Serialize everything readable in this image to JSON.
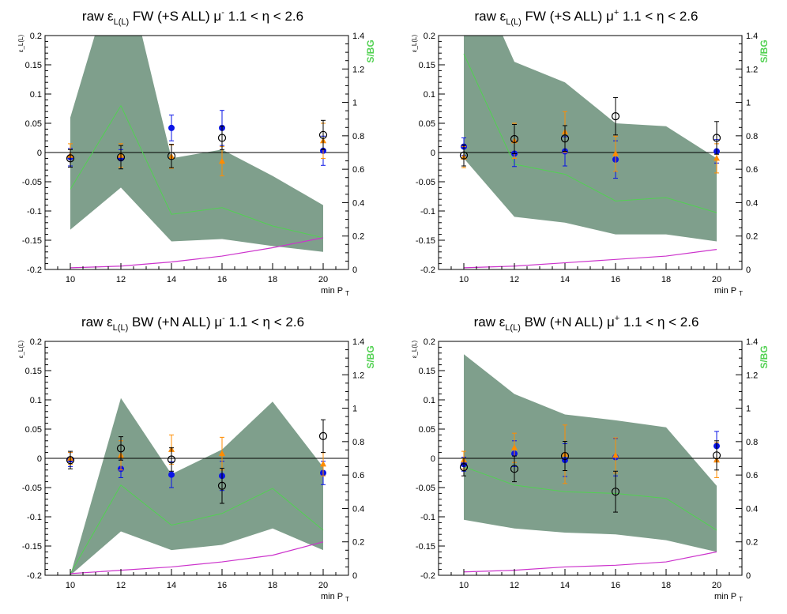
{
  "chart_data": [
    {
      "type": "scatter",
      "title": {
        "pre": "raw ",
        "eps": "ε",
        "sub": "L(L)",
        "mid": " FW (+S ALL) ",
        "mu": "μ",
        "sup": "-",
        "post": "  1.1 < η < 2.6"
      },
      "ylabel": "ε_L(L)",
      "y2label": "S/BG",
      "xlabel": {
        "main": "min P",
        "sub": "T"
      },
      "x_ticks": [
        "10",
        "12",
        "14",
        "16",
        "18",
        "20"
      ],
      "y_ticks": [
        "-0.2",
        "-0.15",
        "-0.1",
        "-0.05",
        "0",
        "0.05",
        "0.1",
        "0.15",
        "0.2"
      ],
      "y2_ticks": [
        "0",
        "0.2",
        "0.4",
        "0.6",
        "0.8",
        "1",
        "1.2",
        "1.4"
      ],
      "xlim": [
        9,
        21
      ],
      "ylim": [
        -0.2,
        0.2
      ],
      "y2lim": [
        0,
        1.4
      ],
      "band": {
        "x": [
          10,
          12,
          14,
          16,
          18,
          20
        ],
        "upper": [
          0.06,
          0.35,
          -0.01,
          0.005,
          -0.04,
          -0.09
        ],
        "lower": [
          -0.132,
          -0.06,
          -0.152,
          -0.148,
          -0.16,
          -0.17
        ]
      },
      "sbg_line": {
        "x": [
          10,
          12,
          14,
          16,
          18,
          20
        ],
        "y": [
          0.48,
          0.98,
          0.33,
          0.37,
          0.26,
          0.19
        ]
      },
      "magenta_line": {
        "x": [
          10,
          12,
          14,
          16,
          18,
          20
        ],
        "y": [
          0.01,
          0.02,
          0.045,
          0.08,
          0.13,
          0.19
        ]
      },
      "series": [
        {
          "marker": "blue-dot",
          "points": [
            {
              "x": 10,
              "y": -0.008,
              "err": 0.015
            },
            {
              "x": 12,
              "y": -0.01,
              "err": 0.015
            },
            {
              "x": 14,
              "y": 0.042,
              "err": 0.022
            },
            {
              "x": 16,
              "y": 0.042,
              "err": 0.03
            },
            {
              "x": 20,
              "y": 0.003,
              "err": 0.025
            }
          ]
        },
        {
          "marker": "orange-triangle",
          "points": [
            {
              "x": 10,
              "y": -0.005,
              "err": 0.02
            },
            {
              "x": 12,
              "y": -0.005,
              "err": 0.02
            },
            {
              "x": 14,
              "y": -0.007,
              "err": 0.02
            },
            {
              "x": 16,
              "y": -0.015,
              "err": 0.025
            },
            {
              "x": 20,
              "y": 0.02,
              "err": 0.03
            }
          ]
        },
        {
          "marker": "black-circle",
          "points": [
            {
              "x": 10,
              "y": -0.01,
              "err": 0.015
            },
            {
              "x": 12,
              "y": -0.008,
              "err": 0.02
            },
            {
              "x": 14,
              "y": -0.006,
              "err": 0.02
            },
            {
              "x": 16,
              "y": 0.025,
              "err": 0.02
            },
            {
              "x": 20,
              "y": 0.03,
              "err": 0.025
            }
          ]
        }
      ]
    },
    {
      "type": "scatter",
      "title": {
        "pre": "raw ",
        "eps": "ε",
        "sub": "L(L)",
        "mid": " FW (+S ALL) ",
        "mu": "μ",
        "sup": "+",
        "post": "  1.1 < η < 2.6"
      },
      "ylabel": "ε_L(L)",
      "y2label": "S/BG",
      "xlabel": {
        "main": "min P",
        "sub": "T"
      },
      "x_ticks": [
        "10",
        "12",
        "14",
        "16",
        "18",
        "20"
      ],
      "y_ticks": [
        "-0.2",
        "-0.15",
        "-0.1",
        "-0.05",
        "0",
        "0.05",
        "0.1",
        "0.15",
        "0.2"
      ],
      "y2_ticks": [
        "0",
        "0.2",
        "0.4",
        "0.6",
        "0.8",
        "1",
        "1.2",
        "1.4"
      ],
      "xlim": [
        9,
        21
      ],
      "ylim": [
        -0.2,
        0.2
      ],
      "y2lim": [
        0,
        1.4
      ],
      "band": {
        "x": [
          10,
          12,
          14,
          16,
          18,
          20
        ],
        "upper": [
          0.35,
          0.155,
          0.12,
          0.05,
          0.045,
          -0.01
        ],
        "lower": [
          -0.01,
          -0.11,
          -0.12,
          -0.14,
          -0.14,
          -0.152
        ]
      },
      "sbg_line": {
        "x": [
          10,
          12,
          14,
          16,
          18,
          20
        ],
        "y": [
          1.29,
          0.63,
          0.57,
          0.41,
          0.43,
          0.34
        ]
      },
      "magenta_line": {
        "x": [
          10,
          12,
          14,
          16,
          18,
          20
        ],
        "y": [
          0.01,
          0.02,
          0.04,
          0.06,
          0.08,
          0.12
        ]
      },
      "series": [
        {
          "marker": "blue-dot",
          "points": [
            {
              "x": 10,
              "y": 0.01,
              "err": 0.015
            },
            {
              "x": 12,
              "y": -0.002,
              "err": 0.022
            },
            {
              "x": 14,
              "y": 0.002,
              "err": 0.025
            },
            {
              "x": 16,
              "y": -0.012,
              "err": 0.032
            },
            {
              "x": 20,
              "y": 0.002,
              "err": 0.02
            }
          ]
        },
        {
          "marker": "orange-triangle",
          "points": [
            {
              "x": 10,
              "y": -0.008,
              "err": 0.018
            },
            {
              "x": 12,
              "y": 0.02,
              "err": 0.03
            },
            {
              "x": 14,
              "y": 0.035,
              "err": 0.035
            },
            {
              "x": 16,
              "y": -0.002,
              "err": 0.03
            },
            {
              "x": 20,
              "y": -0.01,
              "err": 0.025
            }
          ]
        },
        {
          "marker": "black-circle",
          "points": [
            {
              "x": 10,
              "y": -0.005,
              "err": 0.018
            },
            {
              "x": 12,
              "y": 0.023,
              "err": 0.025
            },
            {
              "x": 14,
              "y": 0.024,
              "err": 0.022
            },
            {
              "x": 16,
              "y": 0.062,
              "err": 0.032
            },
            {
              "x": 20,
              "y": 0.025,
              "err": 0.028
            }
          ]
        }
      ]
    },
    {
      "type": "scatter",
      "title": {
        "pre": "raw ",
        "eps": "ε",
        "sub": "L(L)",
        "mid": " BW (+N ALL) ",
        "mu": "μ",
        "sup": "-",
        "post": "  1.1 < η < 2.6"
      },
      "ylabel": "ε_L(L)",
      "y2label": "S/BG",
      "xlabel": {
        "main": "min P",
        "sub": "T"
      },
      "x_ticks": [
        "10",
        "12",
        "14",
        "16",
        "18",
        "20"
      ],
      "y_ticks": [
        "-0.2",
        "-0.15",
        "-0.1",
        "-0.05",
        "0",
        "0.05",
        "0.1",
        "0.15",
        "0.2"
      ],
      "y2_ticks": [
        "0",
        "0.2",
        "0.4",
        "0.6",
        "0.8",
        "1",
        "1.2",
        "1.4"
      ],
      "xlim": [
        9,
        21
      ],
      "ylim": [
        -0.2,
        0.2
      ],
      "y2lim": [
        0,
        1.4
      ],
      "band": {
        "x": [
          10,
          12,
          14,
          16,
          18,
          20
        ],
        "upper": [
          -0.2,
          0.103,
          -0.027,
          0.015,
          0.097,
          -0.015
        ],
        "lower": [
          -0.2,
          -0.125,
          -0.157,
          -0.148,
          -0.12,
          -0.157
        ]
      },
      "sbg_line": {
        "x": [
          10,
          12,
          14,
          16,
          18,
          20
        ],
        "y": [
          0.01,
          0.54,
          0.3,
          0.37,
          0.52,
          0.27
        ]
      },
      "magenta_line": {
        "x": [
          10,
          12,
          14,
          16,
          18,
          20
        ],
        "y": [
          0.01,
          0.03,
          0.05,
          0.08,
          0.12,
          0.2
        ]
      },
      "series": [
        {
          "marker": "blue-dot",
          "points": [
            {
              "x": 10,
              "y": -0.002,
              "err": 0.012
            },
            {
              "x": 12,
              "y": -0.018,
              "err": 0.015
            },
            {
              "x": 14,
              "y": -0.028,
              "err": 0.022
            },
            {
              "x": 16,
              "y": -0.03,
              "err": 0.025
            },
            {
              "x": 20,
              "y": -0.025,
              "err": 0.02
            }
          ]
        },
        {
          "marker": "orange-triangle",
          "points": [
            {
              "x": 10,
              "y": 0.0,
              "err": 0.01
            },
            {
              "x": 12,
              "y": 0.005,
              "err": 0.025
            },
            {
              "x": 14,
              "y": 0.015,
              "err": 0.025
            },
            {
              "x": 16,
              "y": 0.008,
              "err": 0.028
            },
            {
              "x": 20,
              "y": -0.01,
              "err": 0.02
            }
          ]
        },
        {
          "marker": "black-circle",
          "points": [
            {
              "x": 10,
              "y": -0.003,
              "err": 0.015
            },
            {
              "x": 12,
              "y": 0.017,
              "err": 0.02
            },
            {
              "x": 14,
              "y": -0.002,
              "err": 0.02
            },
            {
              "x": 16,
              "y": -0.047,
              "err": 0.03
            },
            {
              "x": 20,
              "y": 0.038,
              "err": 0.028
            }
          ]
        }
      ]
    },
    {
      "type": "scatter",
      "title": {
        "pre": "raw ",
        "eps": "ε",
        "sub": "L(L)",
        "mid": " BW (+N ALL) ",
        "mu": "μ",
        "sup": "+",
        "post": "  1.1 < η < 2.6"
      },
      "ylabel": "ε_L(L)",
      "y2label": "S/BG",
      "xlabel": {
        "main": "min P",
        "sub": "T"
      },
      "x_ticks": [
        "10",
        "12",
        "14",
        "16",
        "18",
        "20"
      ],
      "y_ticks": [
        "-0.2",
        "-0.15",
        "-0.1",
        "-0.05",
        "0",
        "0.05",
        "0.1",
        "0.15",
        "0.2"
      ],
      "y2_ticks": [
        "0",
        "0.2",
        "0.4",
        "0.6",
        "0.8",
        "1",
        "1.2",
        "1.4"
      ],
      "xlim": [
        9,
        21
      ],
      "ylim": [
        -0.2,
        0.2
      ],
      "y2lim": [
        0,
        1.4
      ],
      "band": {
        "x": [
          10,
          12,
          14,
          16,
          18,
          20
        ],
        "upper": [
          0.178,
          0.11,
          0.075,
          0.065,
          0.053,
          -0.047
        ],
        "lower": [
          -0.105,
          -0.12,
          -0.127,
          -0.13,
          -0.14,
          -0.16
        ]
      },
      "sbg_line": {
        "x": [
          10,
          12,
          14,
          16,
          18,
          20
        ],
        "y": [
          0.65,
          0.54,
          0.5,
          0.49,
          0.46,
          0.27
        ]
      },
      "magenta_line": {
        "x": [
          10,
          12,
          14,
          16,
          18,
          20
        ],
        "y": [
          0.02,
          0.03,
          0.05,
          0.06,
          0.08,
          0.14
        ]
      },
      "series": [
        {
          "marker": "blue-dot",
          "points": [
            {
              "x": 10,
              "y": -0.01,
              "err": 0.012
            },
            {
              "x": 12,
              "y": 0.008,
              "err": 0.022
            },
            {
              "x": 14,
              "y": -0.003,
              "err": 0.028
            },
            {
              "x": 16,
              "y": 0.002,
              "err": 0.032
            },
            {
              "x": 20,
              "y": 0.021,
              "err": 0.025
            }
          ]
        },
        {
          "marker": "orange-triangle",
          "points": [
            {
              "x": 10,
              "y": -0.003,
              "err": 0.015
            },
            {
              "x": 12,
              "y": 0.018,
              "err": 0.025
            },
            {
              "x": 14,
              "y": 0.007,
              "err": 0.05
            },
            {
              "x": 16,
              "y": 0.005,
              "err": 0.03
            },
            {
              "x": 20,
              "y": -0.003,
              "err": 0.03
            }
          ]
        },
        {
          "marker": "black-circle",
          "points": [
            {
              "x": 10,
              "y": -0.015,
              "err": 0.015
            },
            {
              "x": 12,
              "y": -0.018,
              "err": 0.022
            },
            {
              "x": 14,
              "y": 0.004,
              "err": 0.025
            },
            {
              "x": 16,
              "y": -0.057,
              "err": 0.035
            },
            {
              "x": 20,
              "y": 0.005,
              "err": 0.025
            }
          ]
        }
      ]
    }
  ]
}
